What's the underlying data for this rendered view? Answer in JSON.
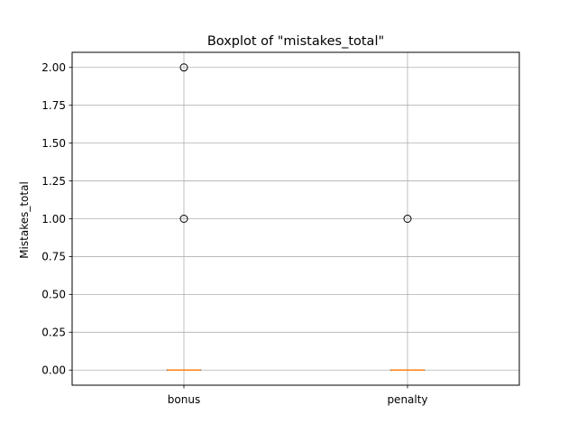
{
  "chart_data": {
    "type": "boxplot",
    "title": "Boxplot of \"mistakes_total\"",
    "xlabel": "",
    "ylabel": "Mistakes_total",
    "ylim": [
      -0.1,
      2.1
    ],
    "yticks": [
      0.0,
      0.25,
      0.5,
      0.75,
      1.0,
      1.25,
      1.5,
      1.75,
      2.0
    ],
    "ytick_labels": [
      "0.00",
      "0.25",
      "0.50",
      "0.75",
      "1.00",
      "1.25",
      "1.50",
      "1.75",
      "2.00"
    ],
    "categories": [
      "bonus",
      "penalty"
    ],
    "grid": true,
    "boxes": [
      {
        "category": "bonus",
        "q1": 0,
        "median": 0,
        "q3": 0,
        "whisker_low": 0,
        "whisker_high": 0,
        "outliers": [
          1,
          2
        ]
      },
      {
        "category": "penalty",
        "q1": 0,
        "median": 0,
        "q3": 0,
        "whisker_low": 0,
        "whisker_high": 0,
        "outliers": [
          1
        ]
      }
    ],
    "colors": {
      "median": "#ff7f0e",
      "grid": "#b0b0b0",
      "box": "#000000"
    }
  }
}
